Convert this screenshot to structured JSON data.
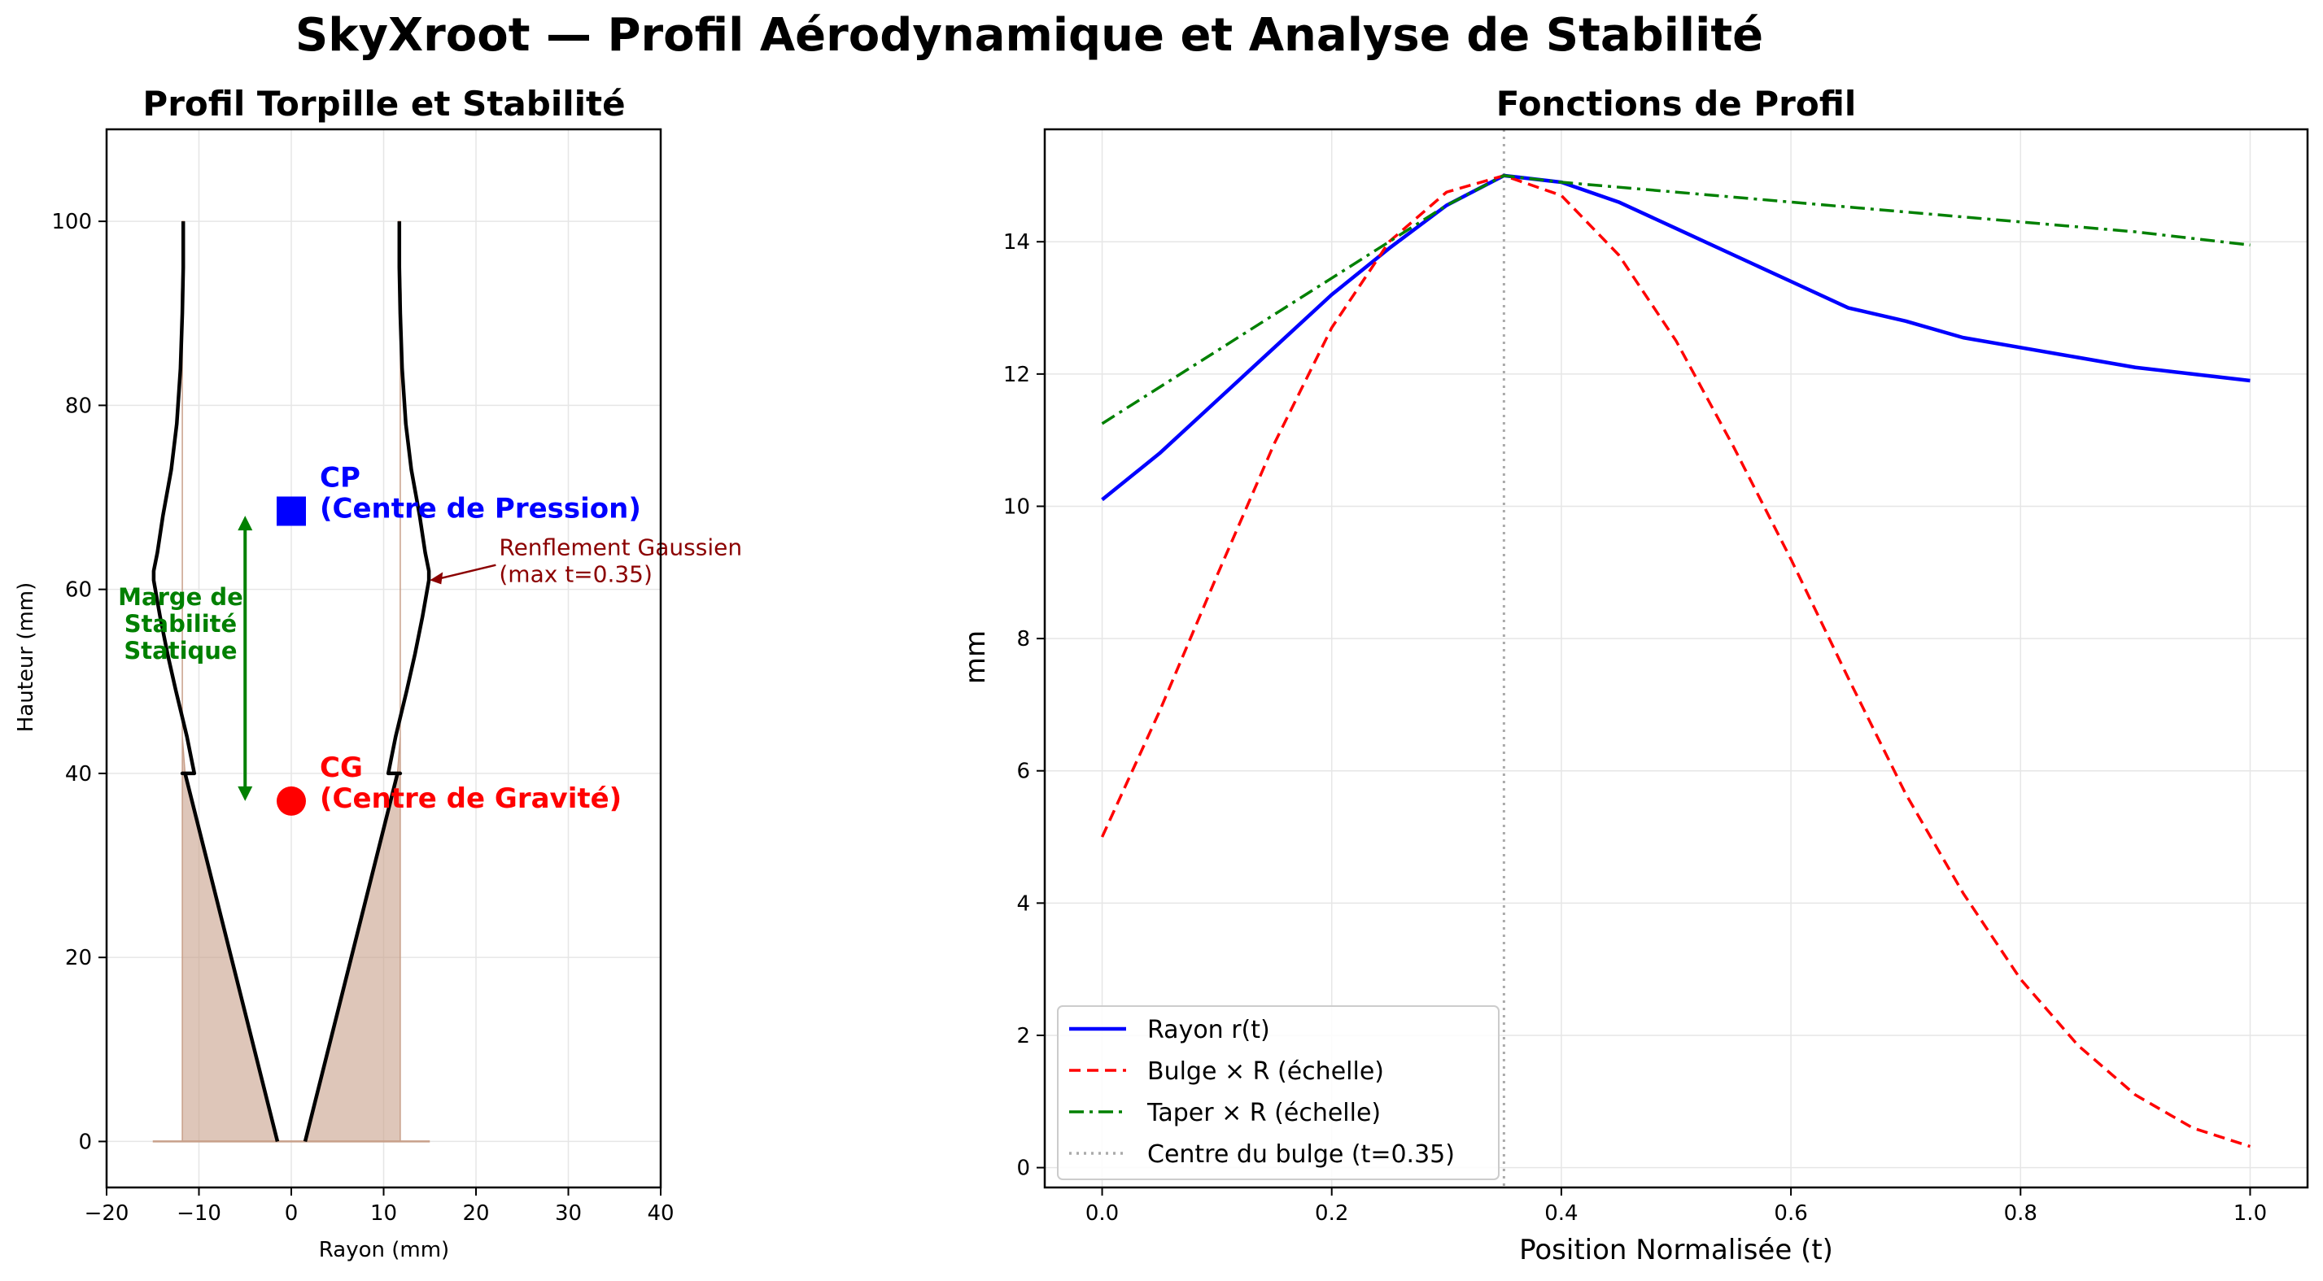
{
  "figure": {
    "suptitle": "SkyXroot — Profil Aérodynamique et Analyse de Stabilité"
  },
  "chart_data": [
    {
      "type": "area",
      "title": "Profil Torpille et Stabilité",
      "xlabel": "Rayon (mm)",
      "ylabel": "Hauteur (mm)",
      "xlim": [
        -20,
        40
      ],
      "ylim": [
        -5,
        110
      ],
      "xticks": [
        -20,
        -10,
        0,
        10,
        20,
        30,
        40
      ],
      "yticks": [
        0,
        20,
        40,
        60,
        80,
        100
      ],
      "grid": true,
      "series": [
        {
          "role": "outline",
          "color": "#000000",
          "x": [
            1.5,
            2.5,
            3.5,
            4.5,
            5.5,
            6.5,
            7.5,
            8.5,
            9.5,
            10.5,
            11.5,
            11.8,
            10.5,
            11.3,
            12.5,
            13.4,
            14.2,
            14.9,
            14.9,
            14.5,
            13.9,
            13.0,
            12.4,
            12.0,
            11.8,
            11.7,
            11.7
          ],
          "y": [
            0,
            4,
            8,
            12,
            16,
            20,
            24,
            28,
            32,
            36,
            40,
            40,
            40,
            44,
            49,
            53,
            57,
            61,
            62,
            64,
            68,
            73,
            78,
            84,
            90,
            95,
            100
          ]
        },
        {
          "role": "filled_region",
          "color": "#c8a08a",
          "x": [
            1.5,
            2.5,
            3.5,
            4.5,
            5.5,
            6.5,
            7.5,
            8.5,
            9.5,
            10.5,
            11.5,
            11.8,
            11.8,
            11.8,
            11.8,
            11.8,
            11.8,
            11.8,
            11.8,
            11.8,
            11.8,
            11.8,
            11.8,
            11.9,
            11.8,
            11.7,
            11.6
          ],
          "y": [
            0,
            4,
            8,
            12,
            16,
            20,
            24,
            28,
            32,
            36,
            40,
            44,
            48,
            52,
            56,
            60,
            64,
            68,
            72,
            76,
            80,
            84,
            88,
            92,
            95,
            98,
            100
          ]
        }
      ],
      "markers": [
        {
          "name": "CP",
          "label": "CP\n(Centre de Pression)",
          "x": 0,
          "y": 68.5,
          "shape": "square",
          "color": "#0000ff"
        },
        {
          "name": "CG",
          "label": "CG\n(Centre de Gravité)",
          "x": 0,
          "y": 37,
          "shape": "circle",
          "color": "#ff0000"
        }
      ],
      "annotations": [
        {
          "text": "Marge de\nStabilité\nStatique",
          "color": "#008000",
          "arrow_x": -5,
          "arrow_y": [
            37,
            68
          ]
        },
        {
          "text": "Renflement Gaussien\n(max t=0.35)",
          "color": "#8b0000",
          "xy": [
            15,
            61
          ],
          "xytext": [
            22.5,
            63
          ]
        }
      ]
    },
    {
      "type": "line",
      "title": "Fonctions de Profil",
      "xlabel": "Position Normalisée (t)",
      "ylabel": "mm",
      "xlim": [
        -0.05,
        1.05
      ],
      "ylim": [
        -0.3,
        15.7
      ],
      "xticks": [
        0.0,
        0.2,
        0.4,
        0.6,
        0.8,
        1.0
      ],
      "yticks": [
        0,
        2,
        4,
        6,
        8,
        10,
        12,
        14
      ],
      "grid": true,
      "legend": "lower-left",
      "vline": {
        "x": 0.35,
        "name": "Centre du bulge (t=0.35)",
        "color": "#aaaaaa",
        "style": "dotted"
      },
      "series": [
        {
          "name": "Rayon r(t)",
          "color": "#0000ff",
          "style": "solid",
          "x": [
            0,
            0.05,
            0.1,
            0.15,
            0.2,
            0.25,
            0.3,
            0.35,
            0.4,
            0.45,
            0.5,
            0.55,
            0.6,
            0.65,
            0.7,
            0.75,
            0.8,
            0.85,
            0.9,
            0.95,
            1.0
          ],
          "y": [
            10.1,
            10.8,
            11.6,
            12.4,
            13.2,
            13.9,
            14.55,
            15.0,
            14.9,
            14.6,
            14.2,
            13.8,
            13.4,
            13.0,
            12.8,
            12.55,
            12.4,
            12.25,
            12.1,
            12.0,
            11.9
          ]
        },
        {
          "name": "Bulge × R (échelle)",
          "color": "#ff0000",
          "style": "dashed",
          "x": [
            0,
            0.05,
            0.1,
            0.15,
            0.2,
            0.25,
            0.3,
            0.35,
            0.4,
            0.45,
            0.5,
            0.55,
            0.6,
            0.65,
            0.7,
            0.75,
            0.8,
            0.85,
            0.9,
            0.95,
            1.0
          ],
          "y": [
            5.0,
            6.9,
            8.95,
            10.95,
            12.7,
            14.0,
            14.75,
            15.0,
            14.7,
            13.8,
            12.5,
            10.9,
            9.2,
            7.4,
            5.65,
            4.15,
            2.85,
            1.85,
            1.1,
            0.6,
            0.32
          ]
        },
        {
          "name": "Taper × R (échelle)",
          "color": "#008000",
          "style": "dashdot",
          "x": [
            0,
            0.05,
            0.1,
            0.15,
            0.2,
            0.25,
            0.3,
            0.35,
            0.4,
            0.5,
            0.6,
            0.7,
            0.8,
            0.9,
            1.0
          ],
          "y": [
            11.25,
            11.8,
            12.35,
            12.9,
            13.45,
            14.0,
            14.55,
            15.0,
            14.9,
            14.75,
            14.6,
            14.45,
            14.3,
            14.15,
            13.95
          ]
        }
      ]
    }
  ]
}
